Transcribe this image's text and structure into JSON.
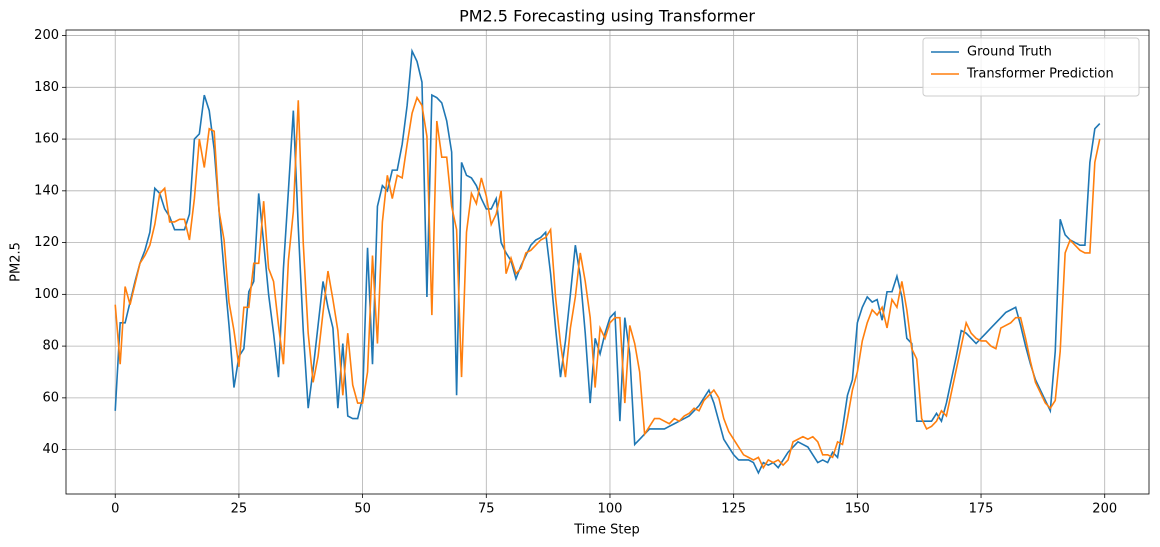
{
  "chart_data": {
    "type": "line",
    "title": "PM2.5 Forecasting using Transformer",
    "x_label": "Time Step",
    "y_label": "PM2.5",
    "x": [
      0,
      1,
      2,
      3,
      4,
      5,
      6,
      7,
      8,
      9,
      10,
      11,
      12,
      13,
      14,
      15,
      16,
      17,
      18,
      19,
      20,
      21,
      22,
      23,
      24,
      25,
      26,
      27,
      28,
      29,
      30,
      31,
      32,
      33,
      34,
      35,
      36,
      37,
      38,
      39,
      40,
      41,
      42,
      43,
      44,
      45,
      46,
      47,
      48,
      49,
      50,
      51,
      52,
      53,
      54,
      55,
      56,
      57,
      58,
      59,
      60,
      61,
      62,
      63,
      64,
      65,
      66,
      67,
      68,
      69,
      70,
      71,
      72,
      73,
      74,
      75,
      76,
      77,
      78,
      79,
      80,
      81,
      82,
      83,
      84,
      85,
      86,
      87,
      88,
      89,
      90,
      91,
      92,
      93,
      94,
      95,
      96,
      97,
      98,
      99,
      100,
      101,
      102,
      103,
      104,
      105,
      106,
      107,
      108,
      109,
      110,
      111,
      112,
      113,
      114,
      115,
      116,
      117,
      118,
      119,
      120,
      121,
      122,
      123,
      124,
      125,
      126,
      127,
      128,
      129,
      130,
      131,
      132,
      133,
      134,
      135,
      136,
      137,
      138,
      139,
      140,
      141,
      142,
      143,
      144,
      145,
      146,
      147,
      148,
      149,
      150,
      151,
      152,
      153,
      154,
      155,
      156,
      157,
      158,
      159,
      160,
      161,
      162,
      163,
      164,
      165,
      166,
      167,
      168,
      169,
      170,
      171,
      172,
      173,
      174,
      175,
      176,
      177,
      178,
      179,
      180,
      181,
      182,
      183,
      184,
      185,
      186,
      187,
      188,
      189,
      190,
      191,
      192,
      193,
      194,
      195,
      196,
      197,
      198,
      199
    ],
    "series": [
      {
        "name": "Ground Truth",
        "color": "#1f77b4",
        "values": [
          55,
          89,
          89,
          97,
          105,
          112,
          117,
          124,
          141,
          139,
          133,
          130,
          125,
          125,
          125,
          131,
          160,
          162,
          177,
          171,
          156,
          132,
          109,
          88,
          64,
          76,
          79,
          101,
          105,
          139,
          120,
          100,
          85,
          68,
          110,
          140,
          171,
          126,
          86,
          56,
          71,
          88,
          105,
          95,
          87,
          56,
          81,
          53,
          52,
          52,
          60,
          118,
          73,
          134,
          142,
          140,
          148,
          148,
          158,
          173,
          194,
          190,
          182,
          99,
          177,
          176,
          174,
          167,
          155,
          61,
          151,
          146,
          145,
          142,
          137,
          133,
          133,
          137,
          120,
          116,
          113,
          106,
          111,
          115,
          119,
          121,
          122,
          124,
          108,
          87,
          68,
          82,
          100,
          119,
          107,
          85,
          58,
          83,
          77,
          85,
          91,
          93,
          51,
          91,
          77,
          42,
          44,
          46,
          48,
          48,
          48,
          48,
          49,
          50,
          51,
          52,
          53,
          55,
          57,
          60,
          63,
          58,
          51,
          44,
          41,
          38,
          36,
          36,
          36,
          35,
          31,
          35,
          34,
          35,
          33,
          36,
          39,
          41,
          43,
          42,
          41,
          38,
          35,
          36,
          35,
          39,
          37,
          48,
          61,
          67,
          89,
          95,
          99,
          97,
          98,
          90,
          101,
          101,
          107,
          99,
          83,
          81,
          51,
          51,
          51,
          51,
          54,
          51,
          58,
          67,
          76,
          86,
          85,
          83,
          81,
          83,
          85,
          87,
          89,
          91,
          93,
          94,
          95,
          88,
          80,
          73,
          67,
          63,
          59,
          55,
          78,
          129,
          123,
          121,
          120,
          119,
          119,
          151,
          164,
          166
        ]
      },
      {
        "name": "Transformer Prediction",
        "color": "#ff7f0e",
        "values": [
          96,
          73,
          103,
          96,
          104,
          112,
          115,
          119,
          127,
          139,
          141,
          128,
          128,
          129,
          129,
          121,
          137,
          160,
          149,
          164,
          163,
          132,
          121,
          97,
          86,
          72,
          95,
          95,
          112,
          112,
          136,
          110,
          105,
          88,
          73,
          113,
          132,
          175,
          120,
          85,
          66,
          76,
          93,
          109,
          98,
          86,
          61,
          85,
          65,
          58,
          58,
          70,
          115,
          81,
          128,
          146,
          137,
          146,
          145,
          158,
          170,
          176,
          173,
          161,
          92,
          167,
          153,
          153,
          134,
          125,
          68,
          124,
          139,
          135,
          145,
          138,
          127,
          131,
          140,
          108,
          114,
          108,
          110,
          116,
          117,
          119,
          121,
          122,
          125,
          99,
          81,
          68,
          87,
          99,
          116,
          105,
          91,
          64,
          87,
          83,
          89,
          91,
          91,
          58,
          88,
          81,
          70,
          46,
          49,
          52,
          52,
          51,
          50,
          52,
          51,
          53,
          54,
          56,
          55,
          59,
          61,
          63,
          60,
          52,
          47,
          44,
          41,
          38,
          37,
          36,
          37,
          33,
          36,
          35,
          36,
          34,
          36,
          43,
          44,
          45,
          44,
          45,
          43,
          38,
          38,
          37,
          43,
          42,
          52,
          63,
          70,
          82,
          89,
          94,
          92,
          95,
          87,
          98,
          95,
          105,
          94,
          79,
          75,
          52,
          48,
          49,
          51,
          55,
          53,
          62,
          71,
          80,
          89,
          85,
          83,
          82,
          82,
          80,
          79,
          87,
          88,
          89,
          91,
          91,
          83,
          74,
          66,
          62,
          58,
          56,
          59,
          78,
          116,
          121,
          119,
          117,
          116,
          116,
          151,
          160
        ]
      }
    ],
    "xlim": [
      -9.95,
      208.95
    ],
    "ylim": [
      22.85,
      202.15
    ],
    "xticks": [
      0,
      25,
      50,
      75,
      100,
      125,
      150,
      175,
      200
    ],
    "yticks": [
      40,
      60,
      80,
      100,
      120,
      140,
      160,
      180,
      200
    ],
    "grid": true,
    "legend": "upper right"
  }
}
